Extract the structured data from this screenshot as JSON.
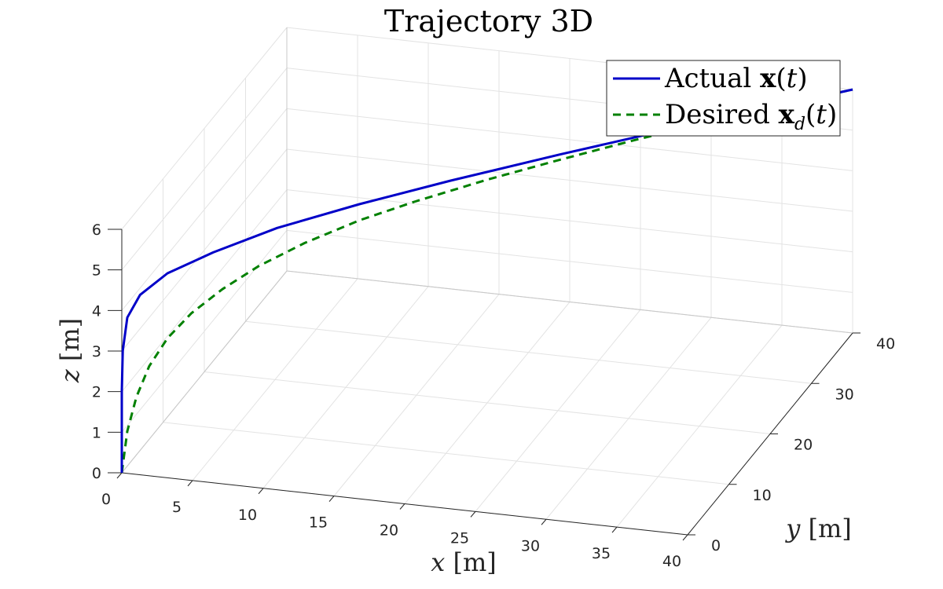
{
  "chart_data": {
    "type": "line",
    "title": "Trajectory 3D",
    "xlabel": "x [m]",
    "ylabel": "y [m]",
    "zlabel": "z [m]",
    "xlim": [
      0,
      40
    ],
    "ylim": [
      0,
      40
    ],
    "zlim": [
      0,
      6
    ],
    "xticks": [
      "0",
      "5",
      "10",
      "15",
      "20",
      "25",
      "30",
      "35",
      "40"
    ],
    "yticks": [
      "0",
      "10",
      "20",
      "30",
      "40"
    ],
    "zticks": [
      "0",
      "1",
      "2",
      "3",
      "4",
      "5",
      "6"
    ],
    "grid": true,
    "legend_position": "top-right",
    "series": [
      {
        "name": "Actual x(t)",
        "legend_label": "Actual",
        "legend_math": "x(t)",
        "color": "#0000c8",
        "style": "solid",
        "x": [
          0,
          0.0,
          0.0,
          0.05,
          0.3,
          1.0,
          2.5,
          5.0,
          8.5,
          13.0,
          18.0,
          24.0,
          30.0,
          36.0,
          40.0
        ],
        "y": [
          0,
          0.0,
          0.0,
          0.05,
          0.3,
          1.0,
          2.5,
          5.0,
          8.5,
          13.0,
          18.0,
          24.0,
          30.0,
          36.0,
          40.0
        ],
        "z": [
          0,
          1.0,
          2.0,
          3.0,
          3.8,
          4.3,
          4.7,
          5.0,
          5.3,
          5.5,
          5.65,
          5.78,
          5.88,
          5.95,
          6.0
        ]
      },
      {
        "name": "Desired x_d(t)",
        "legend_label": "Desired",
        "legend_math": "x_d(t)",
        "color": "#008000",
        "style": "dashed",
        "x": [
          0,
          0.3,
          0.8,
          1.5,
          2.5,
          3.8,
          5.5,
          7.5,
          10.0,
          13.0,
          16.0,
          20.0,
          24.0,
          28.0,
          32.0,
          36.0,
          40.0
        ],
        "y": [
          0,
          0.3,
          0.8,
          1.5,
          2.5,
          3.8,
          5.5,
          7.5,
          10.0,
          13.0,
          16.0,
          20.0,
          24.0,
          28.0,
          32.0,
          36.0,
          40.0
        ],
        "z": [
          0,
          1.0,
          1.8,
          2.5,
          3.1,
          3.6,
          4.05,
          4.45,
          4.8,
          5.1,
          5.3,
          5.5,
          5.65,
          5.78,
          5.88,
          5.95,
          6.0
        ]
      }
    ]
  }
}
